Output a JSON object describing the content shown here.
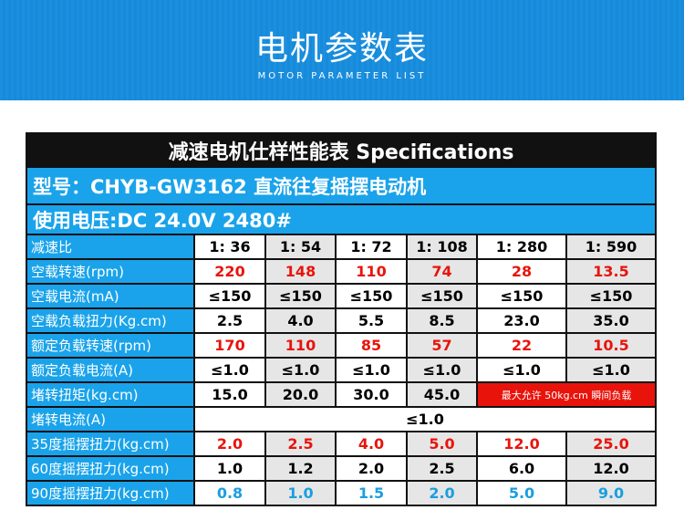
{
  "header": {
    "title": "电机参数表",
    "subtitle": "MOTOR PARAMETER LIST"
  },
  "table": {
    "title": "减速电机仕样性能表 Specifications",
    "model": "型号：CHYB-GW3162 直流往复摇摆电动机",
    "voltage": "使用电压:DC 24.0V  2480#",
    "rows": [
      {
        "label": "减速比",
        "cells": [
          "1: 36",
          "1: 54",
          "1: 72",
          "1: 108",
          "1: 280",
          "1: 590"
        ]
      },
      {
        "label": "空载转速(rpm)",
        "cells": [
          "220",
          "148",
          "110",
          "74",
          "28",
          "13.5"
        ]
      },
      {
        "label": "空载电流(mA)",
        "cells": [
          "≤150",
          "≤150",
          "≤150",
          "≤150",
          "≤150",
          "≤150"
        ]
      },
      {
        "label": "空载负载扭力(Kg.cm)",
        "cells": [
          "2.5",
          "4.0",
          "5.5",
          "8.5",
          "23.0",
          "35.0"
        ]
      },
      {
        "label": "额定负载转速(rpm)",
        "cells": [
          "170",
          "110",
          "85",
          "57",
          "22",
          "10.5"
        ]
      },
      {
        "label": "额定负载电流(A)",
        "cells": [
          "≤1.0",
          "≤1.0",
          "≤1.0",
          "≤1.0",
          "≤1.0",
          "≤1.0"
        ]
      },
      {
        "label": "堵转扭矩(kg.cm)",
        "cells": [
          "15.0",
          "20.0",
          "30.0",
          "45.0",
          "最大允许 50kg.cm 瞬间负载"
        ]
      },
      {
        "label": "堵转电流(A)",
        "cells": [
          "≤1.0"
        ]
      },
      {
        "label": "35度摇摆扭力(kg.cm)",
        "cells": [
          "2.0",
          "2.5",
          "4.0",
          "5.0",
          "12.0",
          "25.0"
        ]
      },
      {
        "label": "60度摇摆扭力(kg.cm)",
        "cells": [
          "1.0",
          "1.2",
          "2.0",
          "2.5",
          "6.0",
          "12.0"
        ]
      },
      {
        "label": "90度摇摆扭力(kg.cm)",
        "cells": [
          "0.8",
          "1.0",
          "1.5",
          "2.0",
          "5.0",
          "9.0"
        ]
      }
    ]
  }
}
